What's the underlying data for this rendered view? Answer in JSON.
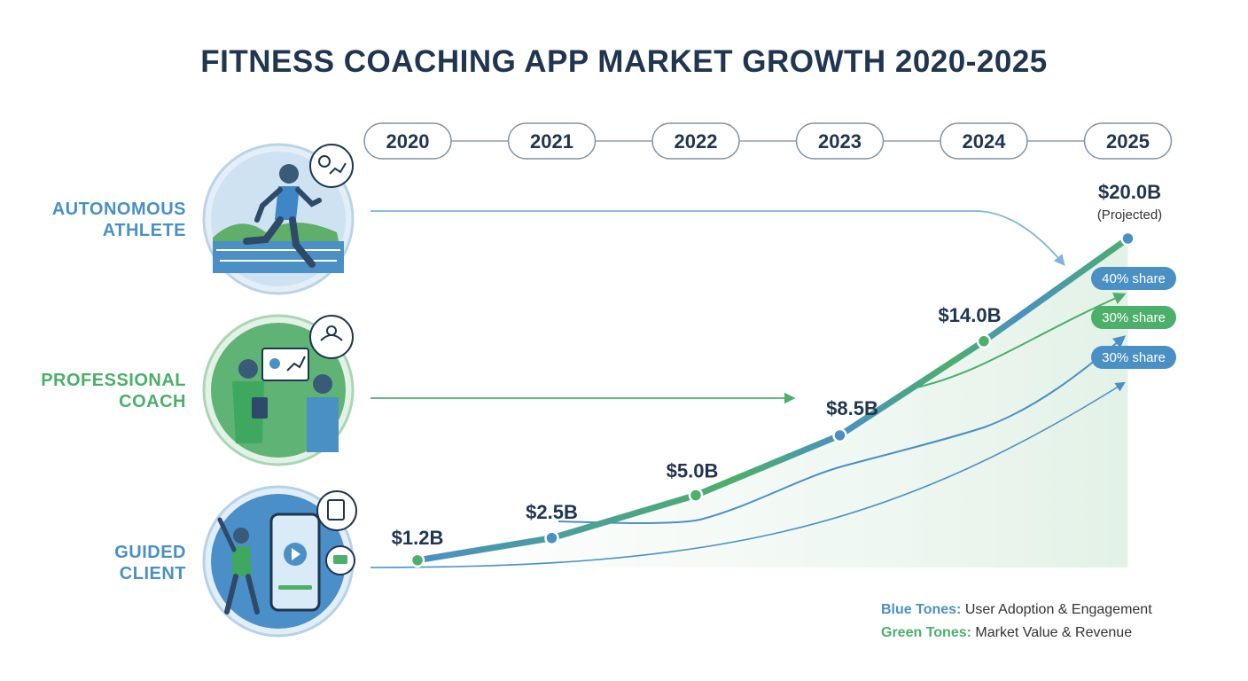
{
  "title": "FITNESS COACHING APP MARKET GROWTH 2020-2025",
  "segments": [
    {
      "line1": "AUTONOMOUS",
      "line2": "ATHLETE",
      "color": "#4a90c4",
      "icon": "runner-icon"
    },
    {
      "line1": "PROFESSIONAL",
      "line2": "COACH",
      "color": "#4caf6a",
      "icon": "coach-icon"
    },
    {
      "line1": "GUIDED",
      "line2": "CLIENT",
      "color": "#4a90c4",
      "icon": "phone-workout-icon"
    }
  ],
  "colors": {
    "blue": "#4a90c4",
    "green": "#4caf6a",
    "dark": "#1f3550"
  },
  "chart_data": {
    "type": "line",
    "title": "FITNESS COACHING APP MARKET GROWTH 2020-2025",
    "categories": [
      "2020",
      "2021",
      "2022",
      "2023",
      "2024",
      "2025"
    ],
    "values": [
      1.2,
      2.5,
      5.0,
      8.5,
      14.0,
      20.0
    ],
    "labels": [
      "$1.2B",
      "$2.5B",
      "$5.0B",
      "$8.5B",
      "$14.0B",
      "$20.0B"
    ],
    "projected_note": "(Projected)",
    "shares": [
      {
        "label": "40% share",
        "color": "#4a90c4"
      },
      {
        "label": "30% share",
        "color": "#4caf6a"
      },
      {
        "label": "30% share",
        "color": "#4a90c4"
      }
    ],
    "ylim": [
      0,
      21
    ]
  },
  "legend": {
    "blue_key": "Blue Tones:",
    "blue_text": "User Adoption & Engagement",
    "green_key": "Green Tones:",
    "green_text": "Market Value & Revenue"
  }
}
